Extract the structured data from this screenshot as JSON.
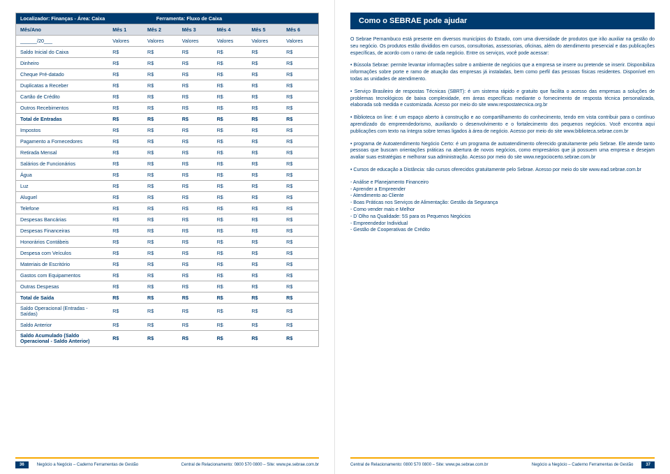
{
  "table": {
    "headerLeft": "Localizador: Finanças - Área: Caixa",
    "headerRight": "Ferramenta: Fluxo de Caixa",
    "mesAno": "Mês/Ano",
    "meses": [
      "Mês 1",
      "Mês 2",
      "Mês 3",
      "Mês 4",
      "Mês 5",
      "Mês 6"
    ],
    "dateHint": "______/20___",
    "valores": "Valores",
    "rs": "R$",
    "rows": [
      {
        "label": "Saldo Inicial do Caixa",
        "bold": false
      },
      {
        "label": "Dinheiro",
        "bold": false
      },
      {
        "label": "Cheque Pré-datado",
        "bold": false
      },
      {
        "label": "Duplicatas a Receber",
        "bold": false
      },
      {
        "label": "Cartão de Crédito",
        "bold": false
      },
      {
        "label": "Outros Recebimentos",
        "bold": false
      },
      {
        "label": "Total de Entradas",
        "bold": true
      },
      {
        "label": "Impostos",
        "bold": false
      },
      {
        "label": "Pagamento a Fornecedores",
        "bold": false
      },
      {
        "label": "Retirada Mensal",
        "bold": false
      },
      {
        "label": "Salários de Funcionários",
        "bold": false
      },
      {
        "label": "Água",
        "bold": false
      },
      {
        "label": "Luz",
        "bold": false
      },
      {
        "label": "Aluguel",
        "bold": false
      },
      {
        "label": "Telefone",
        "bold": false
      },
      {
        "label": "Despesas Bancárias",
        "bold": false
      },
      {
        "label": "Despesas Financeiras",
        "bold": false
      },
      {
        "label": "Honorários Contábeis",
        "bold": false
      },
      {
        "label": "Despesa com Veículos",
        "bold": false
      },
      {
        "label": "Materiais de Escritório",
        "bold": false
      },
      {
        "label": "Gastos com Equipamentos",
        "bold": false
      },
      {
        "label": "Outras Despesas",
        "bold": false
      },
      {
        "label": "Total de Saída",
        "bold": true
      },
      {
        "label": "Saldo Operacional (Entradas - Saídas)",
        "bold": false,
        "multi": true
      },
      {
        "label": "Saldo Anterior",
        "bold": false
      },
      {
        "label": "Saldo Acumulado (Saldo Operacional - Saldo Anterior)",
        "bold": true,
        "multi": true
      }
    ]
  },
  "right": {
    "title": "Como o SEBRAE pode ajudar",
    "intro": "O Sebrae Pernambuco está presente em diversos municípios do Estado, com uma diversidade de produtos que irão auxiliar na gestão do seu negócio. Os produtos estão divididos em cursos, consultorias, assessorias, oficinas, além do atendimento presencial e das publicações específicas, de acordo com o ramo de cada negócio. Entre os serviços, você pode acessar:",
    "bullets": [
      "• Bússola Sebrae: permite levantar informações sobre o ambiente de negócios que a empresa se insere ou pretende se inserir. Disponibiliza informações sobre porte e ramo de atuação das empresas já instaladas, bem como perfil das pessoas físicas residentes. Disponível em todas as unidades de atendimento.",
      "• Serviço Brasileiro de respostas Técnicas (SBRT): é um sistema rápido e gratuito que facilita o acesso das empresas a soluções de problemas tecnológicos de baixa complexidade, em áreas específicas mediante o fornecimento de resposta técnica personalizada, elaborada sob medida e customizada. Acesso por meio do site www.respostatecnica.org.br",
      "• Biblioteca on line: é um espaço aberto à construção e ao compartilhamento do conhecimento, tendo em vista contribuir para o contínuo aprendizado do empreendedorismo, auxiliando o desenvolvimento e o fortalecimento dos pequenos negócios. Você encontra aqui publicações com texto na íntegra sobre temas ligados à área de negócio. Acesso por meio do site www.biblioteca.sebrae.com.br",
      "• programa de Autoatendimento Negócio Certo: é um programa de autoatendimento oferecido gratuitamente pelo Sebrae. Ele atende tanto pessoas que buscam orientações práticas na abertura de novos negócios, como empresários que já possuem uma empresa e desejam avaliar suas estratégias e melhorar sua administração. Acesso por meio do site www.negociocerto.sebrae.com.br",
      "• Cursos de educação a Distância: são cursos oferecidos gratuitamente pelo Sebrae. Acesso por meio do site www.ead.sebrae.com.br"
    ],
    "courses": [
      "- Análise e Planejamento Financeiro",
      "- Aprender a Empreender",
      "- Atendimento ao Cliente",
      "- Boas Práticas nos Serviços de Alimentação: Gestão da Segurança",
      "- Como vender mais e Melhor",
      "- D´Olho na Qualidade: 5S para os Pequenos Negócios",
      "- Empreendedor Individual",
      "- Gestão de Cooperativas de Crédito"
    ]
  },
  "footer": {
    "leftNum": "36",
    "rightNum": "37",
    "title": "Negócio a Negócio – Caderno Ferramentas de Gestão",
    "contact": "Central de Relacionamento: 0800 570 0800 – Site: www.pe.sebrae.com.br"
  }
}
